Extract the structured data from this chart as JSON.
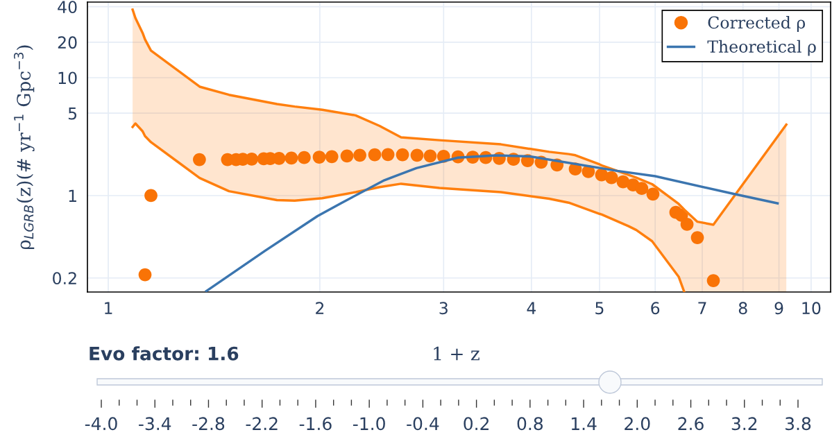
{
  "chart_data": {
    "type": "scatter",
    "xlabel": "1 + z",
    "ylabel": "ρ$_{LGRB}$(z)(# yr$^{−1}$ Gpc$^{−3}$)",
    "log": "xy",
    "grid": true,
    "legend": "top right",
    "xlim": [
      0.934,
      10.66
    ],
    "xticks": [
      1,
      2,
      3,
      4,
      5,
      6,
      7,
      8,
      9,
      10
    ],
    "ylim": [
      0.152,
      43.8
    ],
    "yticks": [
      0.2,
      1,
      5,
      10,
      20,
      40
    ],
    "series": [
      {
        "type": "line",
        "color": "#ff7f0e",
        "x": [
          1.083,
          1.093,
          1.119,
          1.128,
          1.15,
          1.349,
          1.485,
          1.738,
          1.842,
          2.016,
          2.249,
          2.432,
          2.61,
          2.96,
          3.62,
          4.24,
          4.52,
          4.62,
          5.0,
          5.04,
          5.5,
          5.64,
          5.94,
          6.48,
          6.6,
          6.89,
          7.26,
          9.22
        ],
        "values": [
          37.8,
          32.1,
          24.0,
          21.1,
          17.0,
          8.39,
          7.16,
          5.98,
          5.69,
          5.34,
          4.79,
          3.9,
          3.12,
          2.95,
          2.72,
          2.35,
          2.25,
          2.2,
          1.84,
          1.8,
          1.5,
          1.42,
          1.25,
          0.85,
          0.76,
          0.6,
          0.566,
          4.0
        ],
        "upper": [
          37.8,
          32.1,
          24.0,
          21.1,
          17.0,
          8.39,
          7.16,
          5.98,
          5.69,
          5.34,
          4.79,
          3.9,
          3.12,
          2.95,
          2.72,
          2.35,
          2.25,
          2.2,
          1.84,
          1.8,
          1.5,
          1.42,
          1.25,
          0.85,
          0.76,
          0.6,
          0.566,
          4.0
        ],
        "lower": [
          3.82,
          4.09,
          3.51,
          3.19,
          2.84,
          1.41,
          1.09,
          0.915,
          0.906,
          0.95,
          1.07,
          1.18,
          1.26,
          1.16,
          1.07,
          0.94,
          0.87,
          0.83,
          0.7,
          0.69,
          0.55,
          0.51,
          0.41,
          0.205,
          0.152,
          0.152,
          0.152,
          0.152
        ]
      },
      {
        "type": "line",
        "color": "#ff7f0e",
        "x": [
          1.083,
          1.093,
          1.119,
          1.128,
          1.15,
          1.349,
          1.485,
          1.738,
          1.842,
          2.016,
          2.249,
          2.432,
          2.61,
          2.96,
          3.62,
          4.24,
          4.52,
          4.62,
          5.0,
          5.04,
          5.5,
          5.64,
          5.94,
          6.48,
          6.6
        ],
        "values": [
          3.82,
          4.09,
          3.51,
          3.19,
          2.84,
          1.41,
          1.09,
          0.915,
          0.906,
          0.95,
          1.07,
          1.18,
          1.26,
          1.16,
          1.07,
          0.94,
          0.87,
          0.83,
          0.7,
          0.69,
          0.55,
          0.51,
          0.41,
          0.205,
          0.152
        ]
      },
      {
        "type": "scatter",
        "name": "Corrected ρ",
        "color": "#f97306",
        "marker": "circle",
        "x": [
          1.128,
          1.15,
          1.348,
          1.478,
          1.52,
          1.554,
          1.6,
          1.664,
          1.7,
          1.75,
          1.822,
          1.9,
          1.996,
          2.08,
          2.186,
          2.28,
          2.394,
          2.5,
          2.622,
          2.75,
          2.871,
          3.0,
          3.145,
          3.3,
          3.444,
          3.6,
          3.772,
          3.95,
          4.13,
          4.35,
          4.618,
          4.82,
          5.034,
          5.2,
          5.401,
          5.58,
          5.742,
          5.956,
          6.42,
          6.54,
          6.66,
          6.89,
          7.26
        ],
        "values": [
          0.213,
          1.0,
          2.02,
          2.02,
          2.02,
          2.03,
          2.04,
          2.05,
          2.06,
          2.07,
          2.08,
          2.1,
          2.12,
          2.14,
          2.17,
          2.2,
          2.22,
          2.23,
          2.22,
          2.2,
          2.17,
          2.15,
          2.13,
          2.12,
          2.1,
          2.07,
          2.03,
          1.98,
          1.92,
          1.82,
          1.68,
          1.6,
          1.5,
          1.42,
          1.31,
          1.23,
          1.15,
          1.03,
          0.72,
          0.68,
          0.57,
          0.44,
          0.19
        ]
      },
      {
        "type": "line",
        "name": "Theoretical ρ",
        "color": "#3b75af",
        "line_style": "solid",
        "x": [
          1.379,
          1.671,
          1.985,
          2.146,
          2.471,
          2.744,
          3.145,
          3.56,
          3.98,
          5.3,
          6.0,
          7.78,
          8.96
        ],
        "values": [
          0.155,
          0.34,
          0.67,
          0.865,
          1.35,
          1.71,
          2.1,
          2.19,
          2.15,
          1.62,
          1.46,
          1.03,
          0.86
        ]
      }
    ],
    "annotations": [
      "Evo factor: 1.6",
      "-4.0",
      "-3.4",
      "-2.8",
      "-2.2",
      "-1.6",
      "-1.0",
      "-0.4",
      "0.2",
      "0.8",
      "1.4",
      "2.0",
      "2.6",
      "3.2",
      "3.8"
    ]
  }
}
